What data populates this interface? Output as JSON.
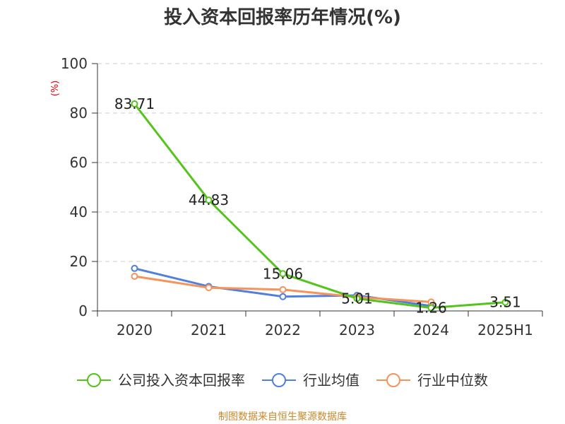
{
  "chart_data": {
    "type": "line",
    "title": "投入资本回报率历年情况(%)",
    "ylabel": "(%)",
    "categories": [
      "2020",
      "2021",
      "2022",
      "2023",
      "2024",
      "2025H1"
    ],
    "ylim": [
      0,
      100
    ],
    "yticks": [
      0,
      20,
      40,
      60,
      80,
      100
    ],
    "grid": true,
    "legend_position": "bottom",
    "series": [
      {
        "name": "公司投入资本回报率",
        "color": "#52c41a",
        "values": [
          83.71,
          44.83,
          15.06,
          5.01,
          1.26,
          3.51
        ],
        "labels": [
          "83.71",
          "44.83",
          "15.06",
          "5.01",
          "1.26",
          "3.51"
        ]
      },
      {
        "name": "行业均值",
        "color": "#4f7fdf",
        "values": [
          17.2,
          9.9,
          5.8,
          6.3,
          2.0,
          null
        ]
      },
      {
        "name": "行业中位数",
        "color": "#f5935a",
        "values": [
          14.0,
          9.4,
          8.6,
          5.6,
          3.6,
          null
        ]
      }
    ]
  },
  "source": "制图数据来自恒生聚源数据库"
}
